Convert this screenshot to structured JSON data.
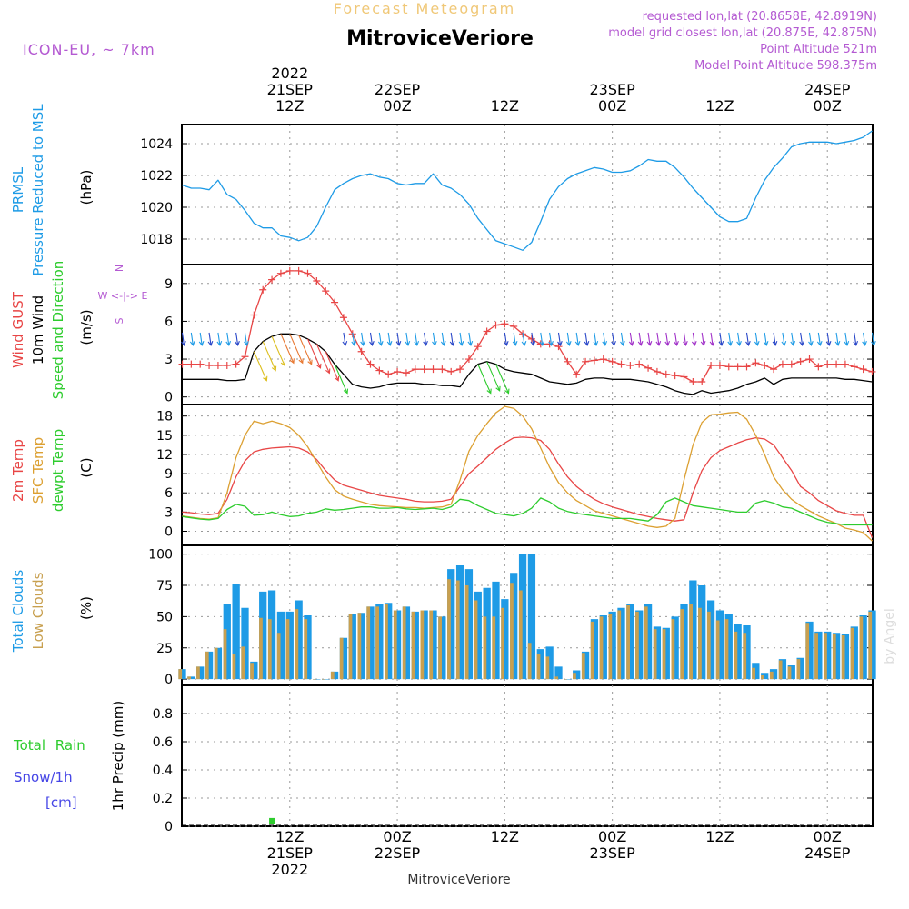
{
  "header": {
    "super_title": "Forecast Meteogram",
    "title": "MitroviceVeriore",
    "model": "ICON-EU, ~ 7km",
    "requested": "requested lon,lat (20.8658E, 42.8919N)",
    "closest": "model grid closest lon,lat (20.875E, 42.875N)",
    "point_alt": "Point Altitude 521m",
    "model_alt": "Model Point Altitude 598.375m",
    "footer": "MitroviceVeriore",
    "watermark": "by Angel"
  },
  "colors": {
    "pressure": "#1e9be6",
    "gust": "#e84646",
    "wind": "#000000",
    "temp": "#e84646",
    "sfc": "#dca032",
    "dewpt": "#2ecc2e",
    "total_clouds": "#1e9be6",
    "low_clouds": "#c8a050",
    "rain": "#2ecc2e",
    "snow": "#4646e6",
    "meta": "#b45ad2",
    "super_title": "#f0c878"
  },
  "time_axis": {
    "top_ticks": [
      {
        "hour": 12,
        "lines": [
          "2022",
          "21SEP",
          "12Z"
        ]
      },
      {
        "hour": 24,
        "lines": [
          "22SEP",
          "00Z"
        ]
      },
      {
        "hour": 36,
        "lines": [
          "12Z"
        ]
      },
      {
        "hour": 48,
        "lines": [
          "23SEP",
          "00Z"
        ]
      },
      {
        "hour": 60,
        "lines": [
          "12Z"
        ]
      },
      {
        "hour": 72,
        "lines": [
          "24SEP",
          "00Z"
        ]
      }
    ],
    "bottom_ticks": [
      {
        "hour": 12,
        "lines": [
          "12Z",
          "21SEP",
          "2022"
        ]
      },
      {
        "hour": 24,
        "lines": [
          "00Z",
          "22SEP"
        ]
      },
      {
        "hour": 36,
        "lines": [
          "12Z"
        ]
      },
      {
        "hour": 48,
        "lines": [
          "00Z",
          "23SEP"
        ]
      },
      {
        "hour": 60,
        "lines": [
          "12Z"
        ]
      },
      {
        "hour": 72,
        "lines": [
          "00Z",
          "24SEP"
        ]
      }
    ]
  },
  "chart_data": [
    {
      "type": "line",
      "panel": "pressure",
      "title": "PRMSL Pressure Reduced to MSL",
      "labels": [
        "PRMSL",
        "Pressure Reduced to MSL"
      ],
      "ylabel": "(hPa)",
      "ylim": [
        1016.4,
        1025.2
      ],
      "yticks": [
        1018,
        1020,
        1022,
        1024
      ],
      "x": [
        0,
        1,
        2,
        3,
        4,
        5,
        6,
        7,
        8,
        9,
        10,
        11,
        12,
        13,
        14,
        15,
        16,
        17,
        18,
        19,
        20,
        21,
        22,
        23,
        24,
        25,
        26,
        27,
        28,
        29,
        30,
        31,
        32,
        33,
        34,
        35,
        36,
        37,
        38,
        39,
        40,
        41,
        42,
        43,
        44,
        45,
        46,
        47,
        48,
        49,
        50,
        51,
        52,
        53,
        54,
        55,
        56,
        57,
        58,
        59,
        60,
        61,
        62,
        63,
        64,
        65,
        66,
        67,
        68,
        69,
        70,
        71,
        72,
        73,
        74,
        75,
        76,
        77
      ],
      "values": [
        1021.4,
        1021.2,
        1021.2,
        1021.1,
        1021.7,
        1020.8,
        1020.5,
        1019.8,
        1019.0,
        1018.7,
        1018.7,
        1018.2,
        1018.1,
        1017.9,
        1018.1,
        1018.8,
        1020.0,
        1021.1,
        1021.5,
        1021.8,
        1022.0,
        1022.1,
        1021.9,
        1021.8,
        1021.5,
        1021.4,
        1021.5,
        1021.5,
        1022.1,
        1021.4,
        1021.2,
        1020.8,
        1020.2,
        1019.3,
        1018.6,
        1017.9,
        1017.7,
        1017.5,
        1017.3,
        1017.8,
        1019.1,
        1020.5,
        1021.3,
        1021.8,
        1022.1,
        1022.3,
        1022.5,
        1022.4,
        1022.2,
        1022.2,
        1022.3,
        1022.6,
        1023.0,
        1022.9,
        1022.9,
        1022.5,
        1021.9,
        1021.2,
        1020.6,
        1020.0,
        1019.4,
        1019.1,
        1019.1,
        1019.3,
        1020.6,
        1021.7,
        1022.5,
        1023.1,
        1023.8,
        1024.0,
        1024.1,
        1024.1,
        1024.1,
        1024.0,
        1024.1,
        1024.2,
        1024.4,
        1024.8
      ]
    },
    {
      "type": "line",
      "panel": "wind",
      "title": "Wind GUST / 10m Wind Speed and Direction",
      "labels": [
        "Wind GUST",
        "10m Wind",
        "Speed and Direction"
      ],
      "ylabel": "(m/s)",
      "compass": [
        "N",
        "W <-|-> E",
        "S"
      ],
      "ylim": [
        -0.6,
        10.5
      ],
      "yticks": [
        0,
        3,
        6,
        9
      ],
      "x": [
        0,
        1,
        2,
        3,
        4,
        5,
        6,
        7,
        8,
        9,
        10,
        11,
        12,
        13,
        14,
        15,
        16,
        17,
        18,
        19,
        20,
        21,
        22,
        23,
        24,
        25,
        26,
        27,
        28,
        29,
        30,
        31,
        32,
        33,
        34,
        35,
        36,
        37,
        38,
        39,
        40,
        41,
        42,
        43,
        44,
        45,
        46,
        47,
        48,
        49,
        50,
        51,
        52,
        53,
        54,
        55,
        56,
        57,
        58,
        59,
        60,
        61,
        62,
        63,
        64,
        65,
        66,
        67,
        68,
        69,
        70,
        71,
        72,
        73,
        74,
        75,
        76,
        77
      ],
      "series": [
        {
          "name": "Wind GUST",
          "values": [
            2.6,
            2.6,
            2.6,
            2.5,
            2.5,
            2.5,
            2.6,
            3.2,
            6.5,
            8.5,
            9.3,
            9.8,
            10.0,
            10.0,
            9.8,
            9.2,
            8.4,
            7.5,
            6.3,
            5.0,
            3.6,
            2.6,
            2.1,
            1.8,
            2.0,
            1.9,
            2.2,
            2.2,
            2.2,
            2.2,
            2.0,
            2.2,
            3.0,
            4.0,
            5.2,
            5.7,
            5.8,
            5.6,
            5.0,
            4.6,
            4.2,
            4.2,
            4.0,
            2.8,
            1.8,
            2.8,
            2.9,
            3.0,
            2.8,
            2.6,
            2.5,
            2.6,
            2.3,
            2.0,
            1.8,
            1.7,
            1.6,
            1.2,
            1.2,
            2.5,
            2.5,
            2.4,
            2.4,
            2.4,
            2.7,
            2.5,
            2.2,
            2.6,
            2.6,
            2.8,
            3.0,
            2.4,
            2.6,
            2.6,
            2.6,
            2.4,
            2.2,
            2.0
          ]
        },
        {
          "name": "10m Wind",
          "values": [
            1.4,
            1.4,
            1.4,
            1.4,
            1.4,
            1.3,
            1.3,
            1.4,
            3.6,
            4.4,
            4.8,
            5.0,
            5.0,
            4.9,
            4.6,
            4.2,
            3.6,
            2.6,
            1.8,
            1.0,
            0.8,
            0.7,
            0.8,
            1.0,
            1.1,
            1.1,
            1.1,
            1.0,
            1.0,
            0.9,
            0.9,
            0.8,
            1.8,
            2.6,
            2.8,
            2.6,
            2.2,
            2.0,
            1.9,
            1.8,
            1.5,
            1.2,
            1.1,
            1.0,
            1.1,
            1.4,
            1.5,
            1.5,
            1.4,
            1.4,
            1.4,
            1.3,
            1.2,
            1.0,
            0.8,
            0.5,
            0.3,
            0.2,
            0.5,
            0.3,
            0.4,
            0.5,
            0.7,
            1.0,
            1.2,
            1.5,
            1.0,
            1.4,
            1.5,
            1.5,
            1.5,
            1.5,
            1.5,
            1.5,
            1.4,
            1.4,
            1.3,
            1.2
          ]
        }
      ]
    },
    {
      "type": "line",
      "panel": "temperature",
      "title": "2m Temp / SFC Temp / dewpt Temp",
      "labels": [
        "2m Temp",
        "SFC Temp",
        "dewpt Temp"
      ],
      "ylabel": "(C)",
      "ylim": [
        -2.2,
        19.8
      ],
      "yticks": [
        0,
        3,
        6,
        9,
        12,
        15,
        18
      ],
      "x": [
        0,
        1,
        2,
        3,
        4,
        5,
        6,
        7,
        8,
        9,
        10,
        11,
        12,
        13,
        14,
        15,
        16,
        17,
        18,
        19,
        20,
        21,
        22,
        23,
        24,
        25,
        26,
        27,
        28,
        29,
        30,
        31,
        32,
        33,
        34,
        35,
        36,
        37,
        38,
        39,
        40,
        41,
        42,
        43,
        44,
        45,
        46,
        47,
        48,
        49,
        50,
        51,
        52,
        53,
        54,
        55,
        56,
        57,
        58,
        59,
        60,
        61,
        62,
        63,
        64,
        65,
        66,
        67,
        68,
        69,
        70,
        71,
        72,
        73,
        74,
        75,
        76,
        77
      ],
      "series": [
        {
          "name": "2m Temp",
          "values": [
            3.0,
            2.9,
            2.7,
            2.6,
            2.8,
            5.0,
            8.5,
            11.0,
            12.4,
            12.8,
            13.0,
            13.1,
            13.2,
            13.0,
            12.4,
            11.2,
            9.5,
            8.0,
            7.2,
            6.8,
            6.4,
            6.0,
            5.6,
            5.4,
            5.2,
            5.0,
            4.7,
            4.6,
            4.6,
            4.7,
            5.0,
            7.0,
            9.0,
            10.2,
            11.5,
            12.8,
            13.8,
            14.6,
            14.7,
            14.6,
            14.2,
            12.8,
            10.5,
            8.5,
            7.0,
            5.9,
            5.0,
            4.3,
            3.8,
            3.4,
            3.0,
            2.6,
            2.3,
            2.0,
            1.8,
            1.6,
            1.8,
            6.0,
            9.5,
            11.5,
            12.6,
            13.2,
            13.8,
            14.3,
            14.6,
            14.4,
            13.5,
            11.5,
            9.5,
            7.0,
            6.0,
            4.8,
            4.0,
            3.2,
            2.8,
            2.5,
            2.5,
            -1.0
          ]
        },
        {
          "name": "SFC Temp",
          "values": [
            2.4,
            2.2,
            2.0,
            1.9,
            2.1,
            6.0,
            11.5,
            15.0,
            17.2,
            16.8,
            17.2,
            16.8,
            16.2,
            15.0,
            13.2,
            10.8,
            8.5,
            6.5,
            5.5,
            5.0,
            4.6,
            4.2,
            4.0,
            3.9,
            3.8,
            3.7,
            3.7,
            3.6,
            3.7,
            3.8,
            4.2,
            8.0,
            12.5,
            15.0,
            16.8,
            18.5,
            19.5,
            19.2,
            18.0,
            16.0,
            13.0,
            10.0,
            7.6,
            6.0,
            4.8,
            4.0,
            3.2,
            2.8,
            2.4,
            2.0,
            1.6,
            1.2,
            0.8,
            0.6,
            0.8,
            2.0,
            8.0,
            13.5,
            17.0,
            18.2,
            18.3,
            18.5,
            18.6,
            17.5,
            15.0,
            12.0,
            8.5,
            6.5,
            5.0,
            4.0,
            3.2,
            2.4,
            1.8,
            1.2,
            0.5,
            0.2,
            -0.2,
            -1.5
          ]
        },
        {
          "name": "dewpt Temp",
          "values": [
            2.3,
            2.1,
            1.9,
            1.8,
            2.0,
            3.4,
            4.2,
            3.9,
            2.5,
            2.6,
            3.0,
            2.6,
            2.3,
            2.4,
            2.8,
            3.0,
            3.5,
            3.3,
            3.4,
            3.6,
            3.8,
            3.8,
            3.6,
            3.6,
            3.7,
            3.5,
            3.4,
            3.5,
            3.6,
            3.4,
            3.8,
            5.0,
            4.8,
            4.0,
            3.4,
            2.8,
            2.6,
            2.4,
            2.8,
            3.6,
            5.2,
            4.6,
            3.6,
            3.1,
            2.8,
            2.6,
            2.4,
            2.2,
            2.0,
            2.0,
            2.0,
            1.8,
            1.6,
            2.6,
            4.6,
            5.2,
            4.6,
            4.0,
            3.8,
            3.6,
            3.4,
            3.2,
            3.0,
            3.0,
            4.4,
            4.8,
            4.4,
            3.8,
            3.6,
            3.0,
            2.4,
            1.8,
            1.4,
            1.2,
            1.0,
            1.0,
            1.0,
            1.0
          ]
        }
      ]
    },
    {
      "type": "bar",
      "panel": "clouds",
      "title": "Total Clouds / Low Clouds",
      "labels": [
        "Total Clouds",
        "Low Clouds"
      ],
      "ylabel": "(%)",
      "ylim": [
        -5,
        107
      ],
      "yticks": [
        0,
        25,
        50,
        75,
        100
      ],
      "x": [
        0,
        1,
        2,
        3,
        4,
        5,
        6,
        7,
        8,
        9,
        10,
        11,
        12,
        13,
        14,
        15,
        16,
        17,
        18,
        19,
        20,
        21,
        22,
        23,
        24,
        25,
        26,
        27,
        28,
        29,
        30,
        31,
        32,
        33,
        34,
        35,
        36,
        37,
        38,
        39,
        40,
        41,
        42,
        43,
        44,
        45,
        46,
        47,
        48,
        49,
        50,
        51,
        52,
        53,
        54,
        55,
        56,
        57,
        58,
        59,
        60,
        61,
        62,
        63,
        64,
        65,
        66,
        67,
        68,
        69,
        70,
        71,
        72,
        73,
        74,
        75,
        76,
        77
      ],
      "series": [
        {
          "name": "Total Clouds",
          "values": [
            8,
            2,
            10,
            22,
            25,
            60,
            76,
            57,
            14,
            70,
            71,
            54,
            54,
            63,
            51,
            0,
            0,
            6,
            33,
            52,
            53,
            58,
            60,
            61,
            55,
            58,
            54,
            55,
            55,
            50,
            88,
            91,
            88,
            70,
            73,
            78,
            64,
            85,
            100,
            100,
            24,
            26,
            10,
            0,
            7,
            22,
            48,
            51,
            54,
            57,
            60,
            55,
            60,
            42,
            41,
            50,
            60,
            79,
            75,
            63,
            55,
            52,
            44,
            43,
            13,
            5,
            8,
            16,
            11,
            17,
            46,
            38,
            38,
            37,
            36,
            42,
            51,
            55
          ]
        },
        {
          "name": "Low Clouds",
          "values": [
            8,
            2,
            10,
            22,
            25,
            40,
            20,
            26,
            13,
            49,
            48,
            37,
            48,
            56,
            48,
            0,
            0,
            6,
            33,
            52,
            53,
            58,
            58,
            60,
            55,
            58,
            54,
            55,
            55,
            50,
            80,
            79,
            75,
            63,
            50,
            50,
            57,
            77,
            71,
            29,
            20,
            18,
            2,
            0,
            5,
            21,
            46,
            50,
            52,
            55,
            59,
            54,
            58,
            40,
            40,
            48,
            56,
            60,
            57,
            54,
            47,
            48,
            38,
            37,
            9,
            3,
            6,
            15,
            10,
            16,
            45,
            37,
            37,
            36,
            35,
            41,
            50,
            54
          ]
        }
      ]
    },
    {
      "type": "bar",
      "panel": "precip",
      "title": "Total Rain / Snow/1h 1hr Precip",
      "labels": [
        "Total Rain",
        "Snow/1h",
        "[cm]"
      ],
      "ylabel": "1hr Precip (mm)",
      "ylim": [
        0,
        1.0
      ],
      "yticks": [
        0,
        0.2,
        0.4,
        0.6,
        0.8
      ],
      "x": [
        10
      ],
      "series": [
        {
          "name": "Total Rain",
          "values": [
            0.02
          ]
        },
        {
          "name": "Snow/1h",
          "values": [
            0
          ]
        }
      ]
    }
  ]
}
